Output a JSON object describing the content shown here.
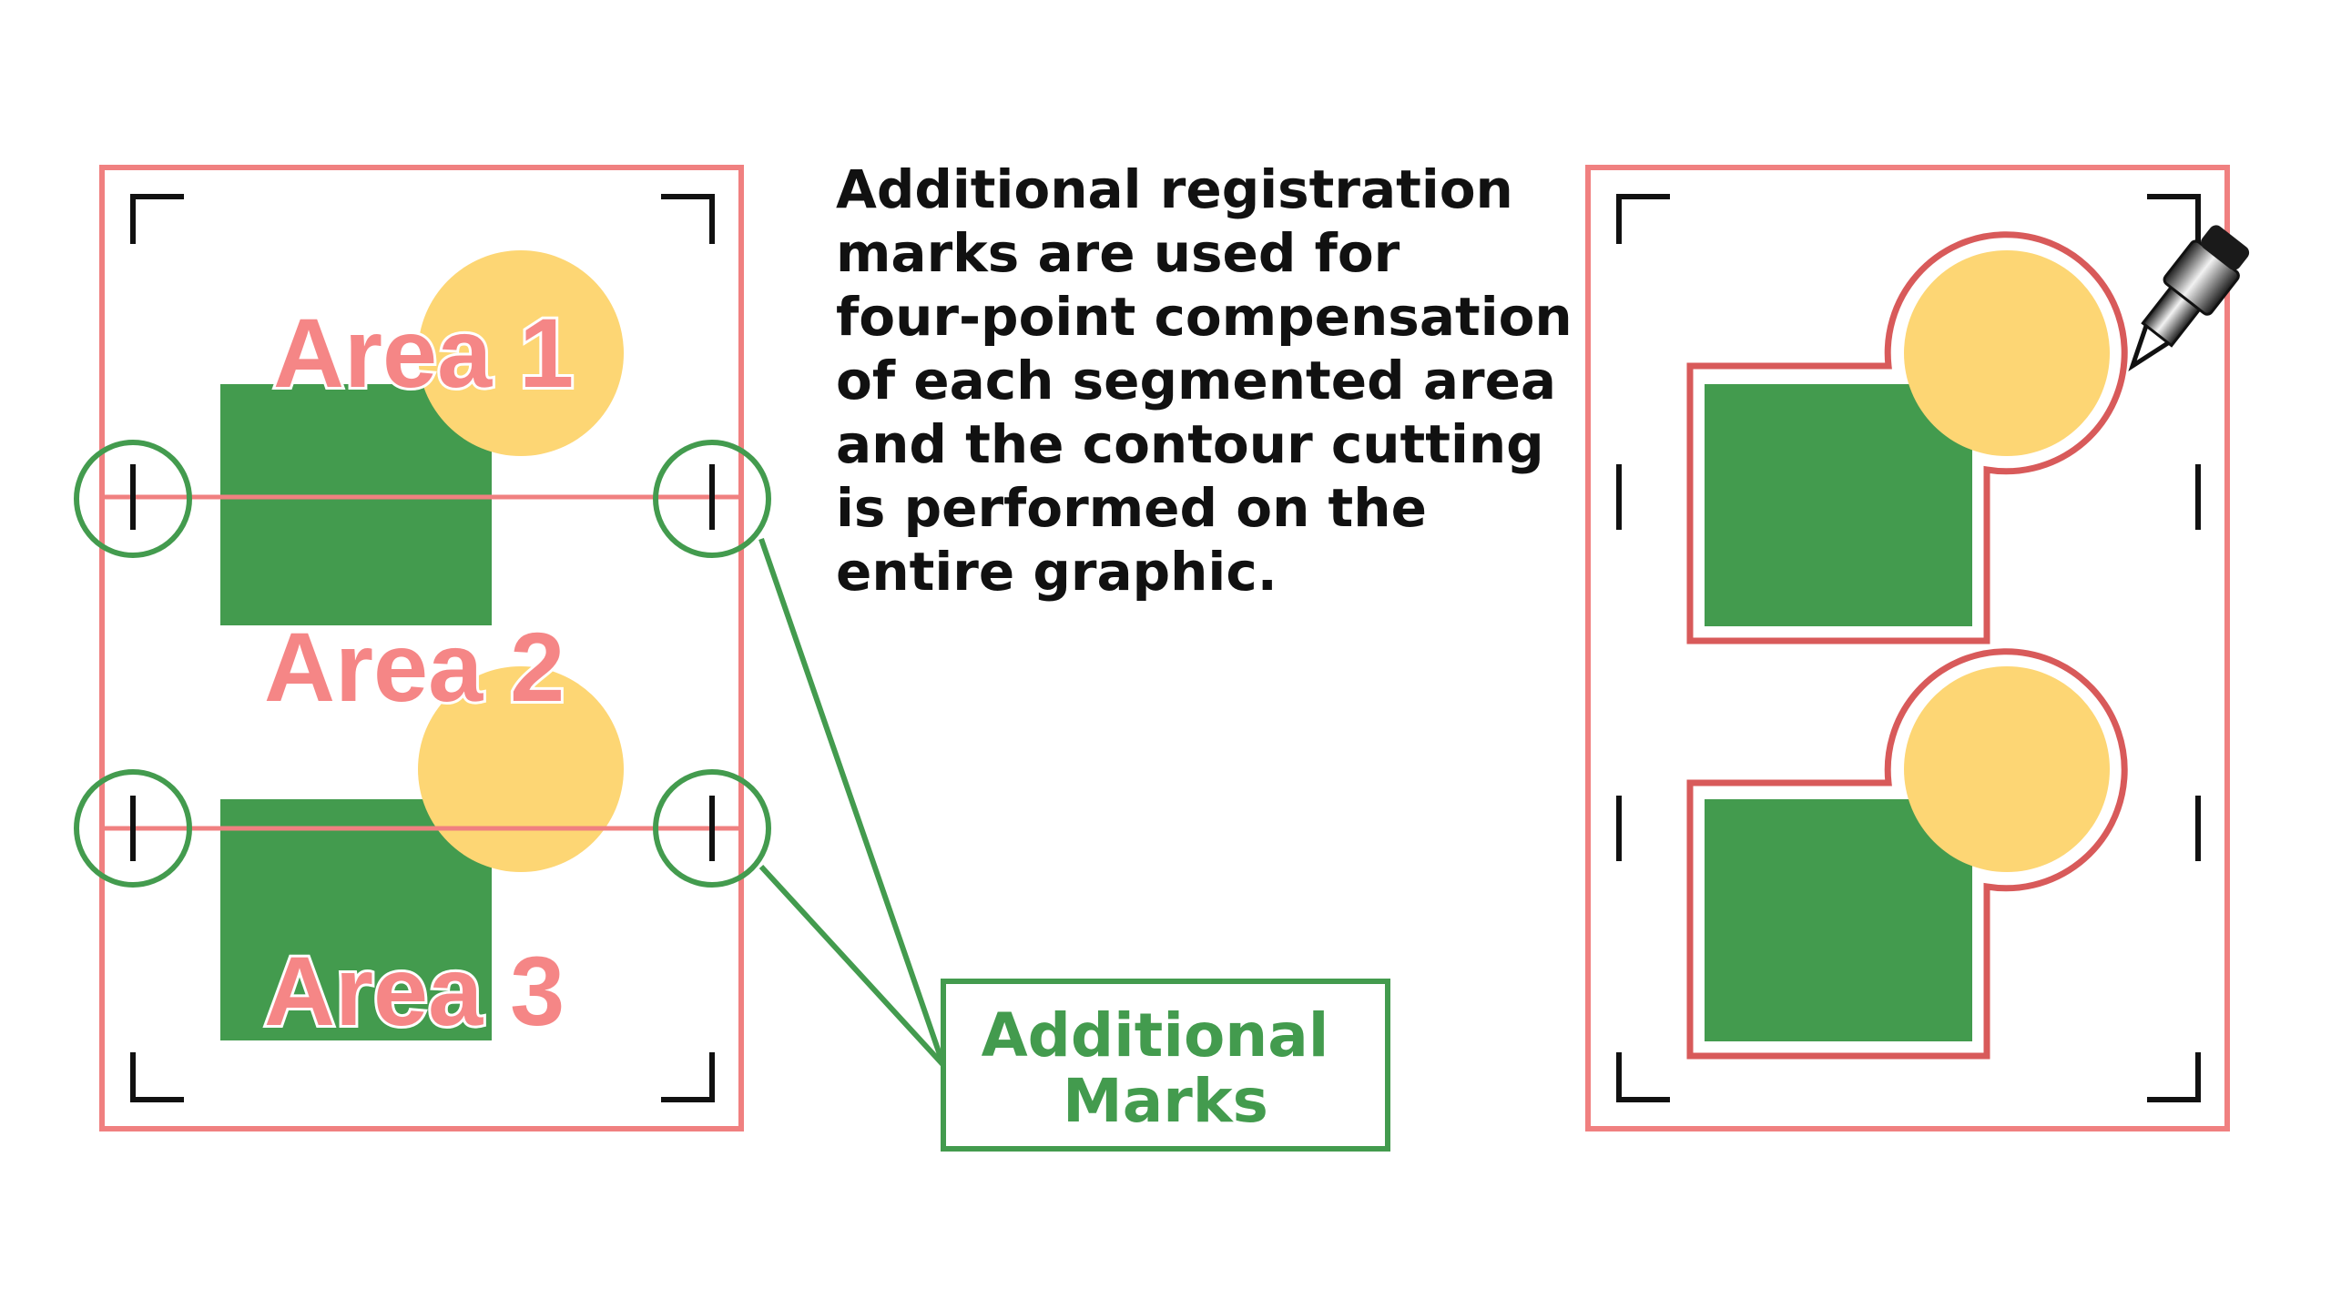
{
  "left_panel": {
    "areas": [
      {
        "label": "Area 1"
      },
      {
        "label": "Area 2"
      },
      {
        "label": "Area 3"
      }
    ]
  },
  "description": {
    "lines": [
      "Additional registration",
      "marks are used for",
      "four-point compensation",
      "of each segmented area",
      "and the contour cutting",
      "is performed on the",
      "entire graphic."
    ]
  },
  "callout": {
    "lines": [
      "Additional",
      "Marks"
    ]
  },
  "colors": {
    "frame": "#f08080",
    "green": "#439b4e",
    "yellow": "#fdd674",
    "area_text": "#f58686",
    "cut_line": "#d85a5a",
    "mark": "#111111"
  },
  "icons": {
    "cutting_tool": "blade-icon"
  }
}
